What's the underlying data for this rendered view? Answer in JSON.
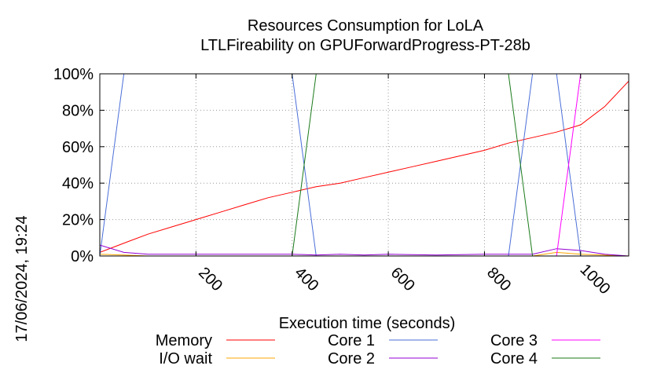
{
  "chart_data": {
    "type": "line",
    "title": "Resources Consumption for LoLA",
    "subtitle": "LTLFireability on GPUForwardProgress-PT-28b",
    "xlabel": "Execution time (seconds)",
    "ylabel": "",
    "timestamp": "17/06/2024, 19:24",
    "xlim": [
      0,
      1100
    ],
    "ylim": [
      0,
      100
    ],
    "x_ticks": [
      {
        "value": 200,
        "label": "200"
      },
      {
        "value": 400,
        "label": "400"
      },
      {
        "value": 600,
        "label": "600"
      },
      {
        "value": 800,
        "label": "800"
      },
      {
        "value": 1000,
        "label": "1000"
      }
    ],
    "y_ticks": [
      {
        "value": 0,
        "label": "0%"
      },
      {
        "value": 20,
        "label": "20%"
      },
      {
        "value": 40,
        "label": "40%"
      },
      {
        "value": 60,
        "label": "60%"
      },
      {
        "value": 80,
        "label": "80%"
      },
      {
        "value": 100,
        "label": "100%"
      }
    ],
    "grid": true,
    "legend_position": "bottom",
    "series": [
      {
        "name": "Memory",
        "color": "#ff0000",
        "points": [
          [
            0,
            2
          ],
          [
            30,
            5
          ],
          [
            60,
            8
          ],
          [
            100,
            12
          ],
          [
            150,
            16
          ],
          [
            200,
            20
          ],
          [
            250,
            24
          ],
          [
            300,
            28
          ],
          [
            350,
            32
          ],
          [
            400,
            35
          ],
          [
            450,
            38
          ],
          [
            500,
            40
          ],
          [
            550,
            43
          ],
          [
            600,
            46
          ],
          [
            650,
            49
          ],
          [
            700,
            52
          ],
          [
            750,
            55
          ],
          [
            800,
            58
          ],
          [
            850,
            62
          ],
          [
            900,
            65
          ],
          [
            950,
            68
          ],
          [
            1000,
            72
          ],
          [
            1050,
            82
          ],
          [
            1100,
            96
          ]
        ]
      },
      {
        "name": "I/O wait",
        "color": "#ffa500",
        "points": [
          [
            0,
            1
          ],
          [
            50,
            0.5
          ],
          [
            100,
            0
          ],
          [
            900,
            0
          ],
          [
            950,
            2
          ],
          [
            1000,
            1
          ],
          [
            1100,
            0
          ]
        ]
      },
      {
        "name": "Core 1",
        "color": "#4a6fd8",
        "points": [
          [
            0,
            0
          ],
          [
            50,
            100
          ],
          [
            400,
            100
          ],
          [
            450,
            0
          ],
          [
            850,
            0
          ],
          [
            900,
            100
          ],
          [
            950,
            100
          ],
          [
            1000,
            0
          ],
          [
            1100,
            0
          ]
        ]
      },
      {
        "name": "Core 2",
        "color": "#9400d3",
        "points": [
          [
            0,
            6
          ],
          [
            50,
            2
          ],
          [
            100,
            1
          ],
          [
            300,
            1
          ],
          [
            400,
            1
          ],
          [
            450,
            0.5
          ],
          [
            500,
            1
          ],
          [
            550,
            0.5
          ],
          [
            600,
            1
          ],
          [
            700,
            0.5
          ],
          [
            800,
            1
          ],
          [
            900,
            1
          ],
          [
            950,
            4
          ],
          [
            1000,
            3
          ],
          [
            1050,
            1
          ],
          [
            1100,
            0
          ]
        ]
      },
      {
        "name": "Core 3",
        "color": "#ff00ff",
        "points": [
          [
            0,
            0
          ],
          [
            950,
            0
          ],
          [
            1000,
            100
          ],
          [
            1100,
            100
          ]
        ]
      },
      {
        "name": "Core 4",
        "color": "#1a7a1a",
        "points": [
          [
            0,
            0
          ],
          [
            400,
            0
          ],
          [
            450,
            100
          ],
          [
            850,
            100
          ],
          [
            900,
            0
          ],
          [
            1100,
            0
          ]
        ]
      }
    ]
  }
}
